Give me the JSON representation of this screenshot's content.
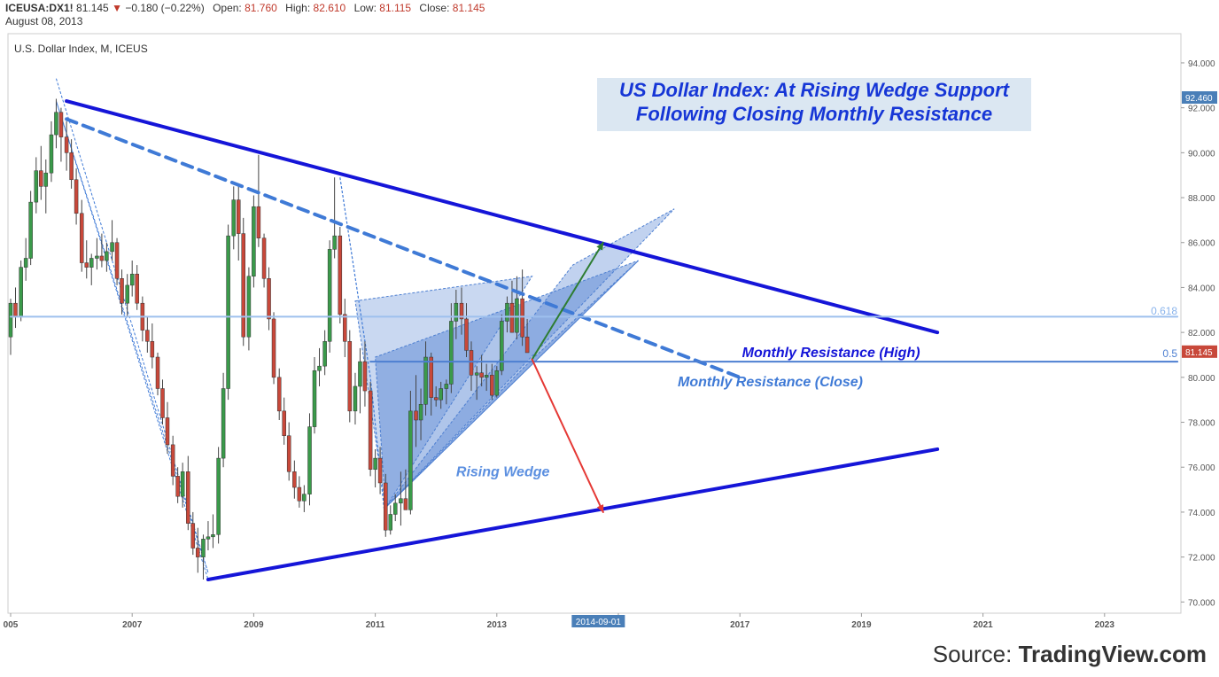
{
  "header": {
    "symbol": "ICEUSA:DX1!",
    "last": "81.145",
    "change": "−0.180 (−0.22%)",
    "open_label": "Open:",
    "open": "81.760",
    "high_label": "High:",
    "high": "82.610",
    "low_label": "Low:",
    "low": "81.115",
    "close_label": "Close:",
    "close": "81.145",
    "date": "August 08, 2013"
  },
  "subtitle": "U.S. Dollar Index, M, ICEUS",
  "title_box": {
    "line1": "US Dollar Index: At Rising Wedge Support",
    "line2": "Following Closing Monthly Resistance"
  },
  "source": {
    "prefix": "Source: ",
    "brand": "TradingView.com"
  },
  "colors": {
    "up": "#3a9a4a",
    "down": "#c8483a",
    "resistance": "#1515d8",
    "dashed": "#3f7ad6",
    "wedge": "#4d7fd1",
    "fib": "#9ec0ee",
    "arrow_up": "#2e7d32",
    "arrow_down": "#e53935"
  },
  "chart_data": {
    "type": "candlestick",
    "x_axis": {
      "ticks": [
        {
          "year": 2005,
          "label": "005"
        },
        {
          "year": 2007,
          "label": "2007"
        },
        {
          "year": 2009,
          "label": "2009"
        },
        {
          "year": 2011,
          "label": "2011"
        },
        {
          "year": 2013,
          "label": "2013"
        },
        {
          "year": 2015,
          "label": "5"
        },
        {
          "year": 2017,
          "label": "2017"
        },
        {
          "year": 2019,
          "label": "2019"
        },
        {
          "year": 2021,
          "label": "2021"
        },
        {
          "year": 2023,
          "label": "2023"
        }
      ],
      "cursor_label": "2014-09-01",
      "cursor_date": 2014.67
    },
    "y_axis": {
      "ticks": [
        "94.000",
        "92.000",
        "90.000",
        "88.000",
        "86.000",
        "84.000",
        "82.000",
        "80.000",
        "78.000",
        "76.000",
        "74.000",
        "72.000",
        "70.000"
      ],
      "range": [
        69.5,
        95.3
      ],
      "tags": [
        {
          "value": 92.46,
          "label": "92.460",
          "color": "#4a7fb8"
        },
        {
          "value": 81.145,
          "label": "81.145",
          "color": "#c8483a"
        }
      ]
    },
    "candles": [
      [
        2005.0,
        81.8,
        83.5,
        81.0,
        83.3
      ],
      [
        2005.08,
        83.3,
        84.0,
        82.2,
        82.7
      ],
      [
        2005.17,
        82.7,
        85.2,
        82.5,
        84.9
      ],
      [
        2005.25,
        84.9,
        86.2,
        84.3,
        85.3
      ],
      [
        2005.33,
        85.3,
        88.3,
        85.0,
        87.8
      ],
      [
        2005.42,
        87.8,
        89.8,
        87.3,
        89.2
      ],
      [
        2005.5,
        89.2,
        90.3,
        87.9,
        88.5
      ],
      [
        2005.58,
        88.5,
        89.7,
        87.3,
        89.1
      ],
      [
        2005.67,
        89.1,
        91.4,
        88.7,
        90.8
      ],
      [
        2005.75,
        90.8,
        92.4,
        90.2,
        91.8
      ],
      [
        2005.83,
        91.8,
        92.0,
        89.6,
        90.7
      ],
      [
        2005.92,
        90.7,
        91.4,
        89.2,
        90.0
      ],
      [
        2006.0,
        90.0,
        90.6,
        88.4,
        88.8
      ],
      [
        2006.08,
        88.8,
        89.3,
        86.8,
        87.3
      ],
      [
        2006.17,
        87.3,
        87.9,
        84.7,
        85.1
      ],
      [
        2006.25,
        85.1,
        86.1,
        84.4,
        84.9
      ],
      [
        2006.33,
        84.9,
        85.5,
        84.1,
        85.3
      ],
      [
        2006.42,
        85.3,
        86.2,
        84.8,
        85.4
      ],
      [
        2006.5,
        85.4,
        86.4,
        84.9,
        85.2
      ],
      [
        2006.58,
        85.2,
        86.0,
        84.7,
        85.6
      ],
      [
        2006.67,
        85.6,
        87.0,
        85.2,
        86.0
      ],
      [
        2006.75,
        86.0,
        86.2,
        84.1,
        84.4
      ],
      [
        2006.83,
        84.4,
        84.8,
        82.8,
        83.3
      ],
      [
        2006.92,
        83.3,
        84.6,
        82.7,
        84.1
      ],
      [
        2007.0,
        84.1,
        85.2,
        83.6,
        84.6
      ],
      [
        2007.08,
        84.6,
        85.0,
        83.0,
        83.3
      ],
      [
        2007.17,
        83.3,
        83.6,
        81.6,
        82.1
      ],
      [
        2007.25,
        82.1,
        82.7,
        81.1,
        81.6
      ],
      [
        2007.33,
        81.6,
        82.4,
        80.4,
        80.9
      ],
      [
        2007.42,
        80.9,
        81.1,
        79.2,
        79.5
      ],
      [
        2007.5,
        79.5,
        79.9,
        77.9,
        78.2
      ],
      [
        2007.58,
        78.2,
        78.9,
        76.6,
        77.0
      ],
      [
        2007.67,
        77.0,
        77.4,
        75.2,
        75.6
      ],
      [
        2007.75,
        75.6,
        76.0,
        74.4,
        74.7
      ],
      [
        2007.83,
        74.7,
        76.2,
        74.2,
        75.8
      ],
      [
        2007.92,
        75.8,
        76.5,
        73.2,
        73.5
      ],
      [
        2008.0,
        73.5,
        74.0,
        72.1,
        72.4
      ],
      [
        2008.08,
        72.4,
        73.3,
        71.3,
        72.0
      ],
      [
        2008.17,
        72.0,
        73.0,
        71.0,
        72.8
      ],
      [
        2008.25,
        72.8,
        73.6,
        72.3,
        72.9
      ],
      [
        2008.33,
        72.9,
        73.9,
        72.4,
        73.0
      ],
      [
        2008.42,
        73.0,
        76.9,
        72.6,
        76.4
      ],
      [
        2008.5,
        76.4,
        80.2,
        76.0,
        79.5
      ],
      [
        2008.58,
        79.5,
        86.8,
        79.0,
        86.3
      ],
      [
        2008.67,
        86.3,
        88.5,
        85.7,
        87.9
      ],
      [
        2008.75,
        87.9,
        88.6,
        85.2,
        86.4
      ],
      [
        2008.83,
        86.4,
        87.1,
        81.4,
        81.8
      ],
      [
        2008.92,
        81.8,
        84.9,
        81.2,
        84.5
      ],
      [
        2009.0,
        84.5,
        88.1,
        84.0,
        87.6
      ],
      [
        2009.08,
        87.6,
        89.9,
        85.8,
        86.2
      ],
      [
        2009.17,
        86.2,
        86.4,
        84.0,
        84.4
      ],
      [
        2009.25,
        84.4,
        84.9,
        82.1,
        82.6
      ],
      [
        2009.33,
        82.6,
        82.9,
        79.7,
        80.0
      ],
      [
        2009.42,
        80.0,
        80.4,
        78.1,
        78.5
      ],
      [
        2009.5,
        78.5,
        79.1,
        77.0,
        77.4
      ],
      [
        2009.58,
        77.4,
        78.0,
        75.4,
        75.8
      ],
      [
        2009.67,
        75.8,
        76.3,
        74.6,
        75.1
      ],
      [
        2009.75,
        75.1,
        75.6,
        74.2,
        74.5
      ],
      [
        2009.83,
        74.5,
        75.2,
        74.0,
        74.8
      ],
      [
        2009.92,
        74.8,
        78.4,
        74.3,
        77.8
      ],
      [
        2010.0,
        77.8,
        80.9,
        77.5,
        80.3
      ],
      [
        2010.08,
        80.3,
        81.3,
        79.6,
        80.5
      ],
      [
        2010.17,
        80.5,
        82.1,
        80.1,
        81.6
      ],
      [
        2010.25,
        81.6,
        86.1,
        81.1,
        85.7
      ],
      [
        2010.33,
        85.7,
        88.9,
        85.3,
        86.3
      ],
      [
        2010.42,
        86.3,
        86.7,
        82.4,
        82.8
      ],
      [
        2010.5,
        82.8,
        83.5,
        80.9,
        81.6
      ],
      [
        2010.58,
        81.6,
        82.1,
        78.0,
        78.5
      ],
      [
        2010.67,
        78.5,
        80.2,
        77.9,
        79.6
      ],
      [
        2010.75,
        79.6,
        81.3,
        78.4,
        80.7
      ],
      [
        2010.83,
        80.7,
        81.6,
        78.7,
        79.4
      ],
      [
        2010.92,
        79.4,
        79.8,
        75.6,
        75.9
      ],
      [
        2011.0,
        75.9,
        76.8,
        75.1,
        76.4
      ],
      [
        2011.08,
        76.4,
        76.9,
        74.8,
        75.3
      ],
      [
        2011.17,
        75.3,
        75.7,
        72.9,
        73.2
      ],
      [
        2011.25,
        73.2,
        74.3,
        73.0,
        73.9
      ],
      [
        2011.33,
        73.9,
        74.8,
        73.6,
        74.4
      ],
      [
        2011.42,
        74.4,
        75.8,
        73.4,
        74.6
      ],
      [
        2011.5,
        74.6,
        75.9,
        74.1,
        74.1
      ],
      [
        2011.58,
        74.1,
        79.4,
        73.9,
        78.5
      ],
      [
        2011.67,
        78.5,
        80.1,
        76.9,
        78.1
      ],
      [
        2011.75,
        78.1,
        79.5,
        77.2,
        78.8
      ],
      [
        2011.83,
        78.8,
        81.6,
        78.3,
        80.9
      ],
      [
        2011.92,
        80.9,
        81.1,
        78.3,
        79.1
      ],
      [
        2012.0,
        79.1,
        79.6,
        78.7,
        79.0
      ],
      [
        2012.08,
        79.0,
        79.8,
        78.6,
        79.5
      ],
      [
        2012.17,
        79.5,
        79.9,
        78.8,
        79.7
      ],
      [
        2012.25,
        79.7,
        83.3,
        79.3,
        82.5
      ],
      [
        2012.33,
        82.5,
        83.9,
        81.7,
        83.3
      ],
      [
        2012.42,
        83.3,
        84.0,
        81.9,
        82.6
      ],
      [
        2012.5,
        82.6,
        83.3,
        80.9,
        81.2
      ],
      [
        2012.58,
        81.2,
        81.6,
        79.4,
        80.1
      ],
      [
        2012.67,
        80.1,
        80.5,
        79.0,
        80.2
      ],
      [
        2012.75,
        80.2,
        81.0,
        79.6,
        80.0
      ],
      [
        2012.83,
        80.0,
        80.6,
        79.4,
        80.1
      ],
      [
        2012.92,
        80.1,
        80.6,
        79.0,
        79.2
      ],
      [
        2013.0,
        79.2,
        80.5,
        79.1,
        80.3
      ],
      [
        2013.08,
        80.3,
        82.8,
        80.1,
        82.5
      ],
      [
        2013.17,
        82.5,
        83.6,
        82.0,
        83.3
      ],
      [
        2013.25,
        83.3,
        84.3,
        82.0,
        82.0
      ],
      [
        2013.33,
        82.0,
        84.5,
        81.7,
        83.5
      ],
      [
        2013.42,
        83.5,
        84.8,
        81.4,
        81.8
      ],
      [
        2013.5,
        81.8,
        82.6,
        81.1,
        81.1
      ]
    ],
    "lines": [
      {
        "name": "monthly-resistance-high",
        "style": "solid",
        "color": "#1515d8",
        "width": 4,
        "points": [
          [
            2005.92,
            92.3
          ],
          [
            2020.25,
            82.0
          ]
        ]
      },
      {
        "name": "monthly-resistance-close",
        "style": "dashed",
        "color": "#3f7ad6",
        "width": 4,
        "points": [
          [
            2005.92,
            91.5
          ],
          [
            2017.0,
            80.0
          ]
        ]
      },
      {
        "name": "support-trendline",
        "style": "solid",
        "color": "#1515d8",
        "width": 4,
        "points": [
          [
            2008.25,
            71.0
          ],
          [
            2020.25,
            76.8
          ]
        ]
      },
      {
        "name": "fib-0618",
        "style": "solid",
        "color": "#9ec0ee",
        "width": 2,
        "points": [
          [
            2005.0,
            82.7
          ],
          [
            2024.2,
            82.7
          ]
        ]
      },
      {
        "name": "fib-05",
        "style": "solid",
        "color": "#4d7fd1",
        "width": 2,
        "points": [
          [
            2010.92,
            80.7
          ],
          [
            2024.2,
            80.7
          ]
        ]
      },
      {
        "name": "arrow-up",
        "style": "arrow",
        "color": "#2e7d32",
        "width": 2,
        "points": [
          [
            2013.58,
            80.8
          ],
          [
            2014.75,
            86.0
          ]
        ]
      },
      {
        "name": "arrow-down",
        "style": "arrow",
        "color": "#e53935",
        "width": 2,
        "points": [
          [
            2013.58,
            80.8
          ],
          [
            2014.75,
            74.0
          ]
        ]
      }
    ],
    "wedge": {
      "polygons": [
        [
          [
            2011.17,
            74.2
          ],
          [
            2014.25,
            85.0
          ],
          [
            2015.92,
            87.5
          ]
        ],
        [
          [
            2011.17,
            74.2
          ],
          [
            2013.58,
            80.8
          ],
          [
            2015.33,
            85.2
          ]
        ],
        [
          [
            2011.17,
            74.2
          ],
          [
            2011.0,
            80.9
          ],
          [
            2015.33,
            85.2
          ]
        ],
        [
          [
            2010.67,
            83.4
          ],
          [
            2013.58,
            84.5
          ],
          [
            2011.17,
            74.2
          ]
        ]
      ],
      "zigzag": [
        [
          2005.75,
          93.3
        ],
        [
          2008.25,
          71.3
        ],
        [
          2005.75,
          92.3
        ],
        [
          2008.25,
          71.0
        ]
      ],
      "drop": [
        [
          2010.42,
          88.9
        ],
        [
          2010.92,
          80.0
        ],
        [
          2011.17,
          73.5
        ]
      ]
    },
    "annotations": [
      {
        "text": "Monthly Resistance (High)",
        "x": 2018.5,
        "y": 80.9,
        "color": "#1515d8",
        "bold": true
      },
      {
        "text": "Monthly Resistance (Close)",
        "x": 2017.5,
        "y": 79.6,
        "color": "#3f7ad6",
        "bold": true
      },
      {
        "text": "Rising Wedge",
        "x": 2013.1,
        "y": 75.6,
        "color": "#5b8fe0",
        "bold": true
      },
      {
        "text": "0.618",
        "x": 2024.2,
        "y": 82.8,
        "color": "#8ab4ec",
        "bold": false,
        "anchor": "end"
      },
      {
        "text": "0.5",
        "x": 2024.2,
        "y": 80.9,
        "color": "#4d7fd1",
        "bold": false,
        "anchor": "end"
      }
    ]
  }
}
